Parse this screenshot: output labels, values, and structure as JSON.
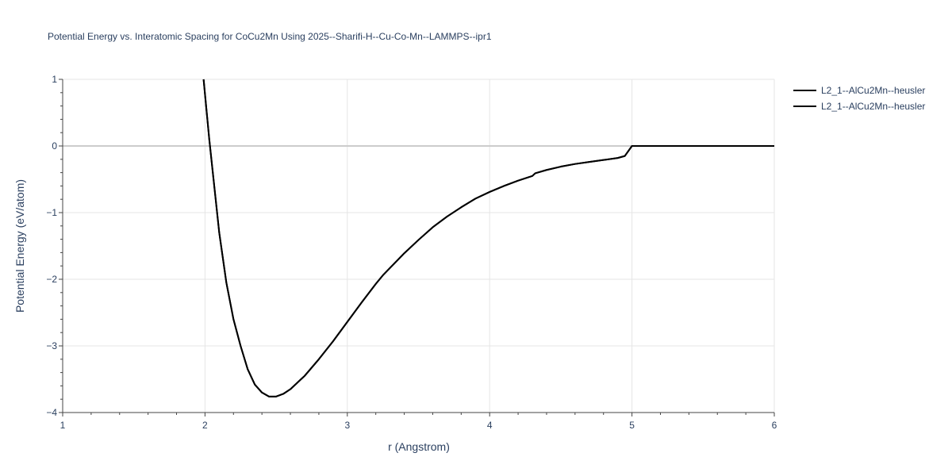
{
  "chart_data": {
    "type": "line",
    "title": "Potential Energy vs. Interatomic Spacing for CoCu2Mn Using 2025--Sharifi-H--Cu-Co-Mn--LAMMPS--ipr1",
    "xlabel": "r (Angstrom)",
    "ylabel": "Potential Energy (eV/atom)",
    "xlim": [
      1,
      6
    ],
    "ylim": [
      -4,
      1
    ],
    "x_ticks": [
      "1",
      "2",
      "3",
      "4",
      "5",
      "6"
    ],
    "y_ticks": [
      "1",
      "0",
      "−1",
      "−2",
      "−3",
      "−4"
    ],
    "grid": true,
    "legend_position": "top-right",
    "line_color": "#000000",
    "series": [
      {
        "name": "L2_1--AlCu2Mn--heusler",
        "x": [
          1.99,
          2.03,
          2.06,
          2.1,
          2.15,
          2.2,
          2.25,
          2.3,
          2.35,
          2.4,
          2.45,
          2.5,
          2.55,
          2.6,
          2.7,
          2.8,
          2.9,
          3.0,
          3.1,
          3.2,
          3.25,
          3.3,
          3.4,
          3.5,
          3.6,
          3.7,
          3.8,
          3.9,
          4.0,
          4.1,
          4.2,
          4.3,
          4.32,
          4.4,
          4.5,
          4.6,
          4.7,
          4.8,
          4.9,
          4.95,
          5.0,
          5.5,
          6.0
        ],
        "y": [
          1.0,
          0.1,
          -0.5,
          -1.3,
          -2.05,
          -2.6,
          -3.0,
          -3.35,
          -3.58,
          -3.7,
          -3.76,
          -3.76,
          -3.72,
          -3.65,
          -3.45,
          -3.2,
          -2.93,
          -2.64,
          -2.35,
          -2.07,
          -1.94,
          -1.83,
          -1.61,
          -1.41,
          -1.22,
          -1.06,
          -0.92,
          -0.79,
          -0.69,
          -0.6,
          -0.52,
          -0.45,
          -0.41,
          -0.36,
          -0.31,
          -0.27,
          -0.24,
          -0.21,
          -0.18,
          -0.15,
          0.0,
          0.0,
          0.0
        ]
      },
      {
        "name": "L2_1--AlCu2Mn--heusler",
        "x": [
          1.99,
          2.03,
          2.06,
          2.1,
          2.15,
          2.2,
          2.25,
          2.3,
          2.35,
          2.4,
          2.45,
          2.5,
          2.55,
          2.6,
          2.7,
          2.8,
          2.9,
          3.0,
          3.1,
          3.2,
          3.25,
          3.3,
          3.4,
          3.5,
          3.6,
          3.7,
          3.8,
          3.9,
          4.0,
          4.1,
          4.2,
          4.3,
          4.32,
          4.4,
          4.5,
          4.6,
          4.7,
          4.8,
          4.9,
          4.95,
          5.0,
          5.5,
          6.0
        ],
        "y": [
          1.0,
          0.1,
          -0.5,
          -1.3,
          -2.05,
          -2.6,
          -3.0,
          -3.35,
          -3.58,
          -3.7,
          -3.76,
          -3.76,
          -3.72,
          -3.65,
          -3.45,
          -3.2,
          -2.93,
          -2.64,
          -2.35,
          -2.07,
          -1.94,
          -1.83,
          -1.61,
          -1.41,
          -1.22,
          -1.06,
          -0.92,
          -0.79,
          -0.69,
          -0.6,
          -0.52,
          -0.45,
          -0.41,
          -0.36,
          -0.31,
          -0.27,
          -0.24,
          -0.21,
          -0.18,
          -0.15,
          0.0,
          0.0,
          0.0
        ]
      }
    ]
  }
}
